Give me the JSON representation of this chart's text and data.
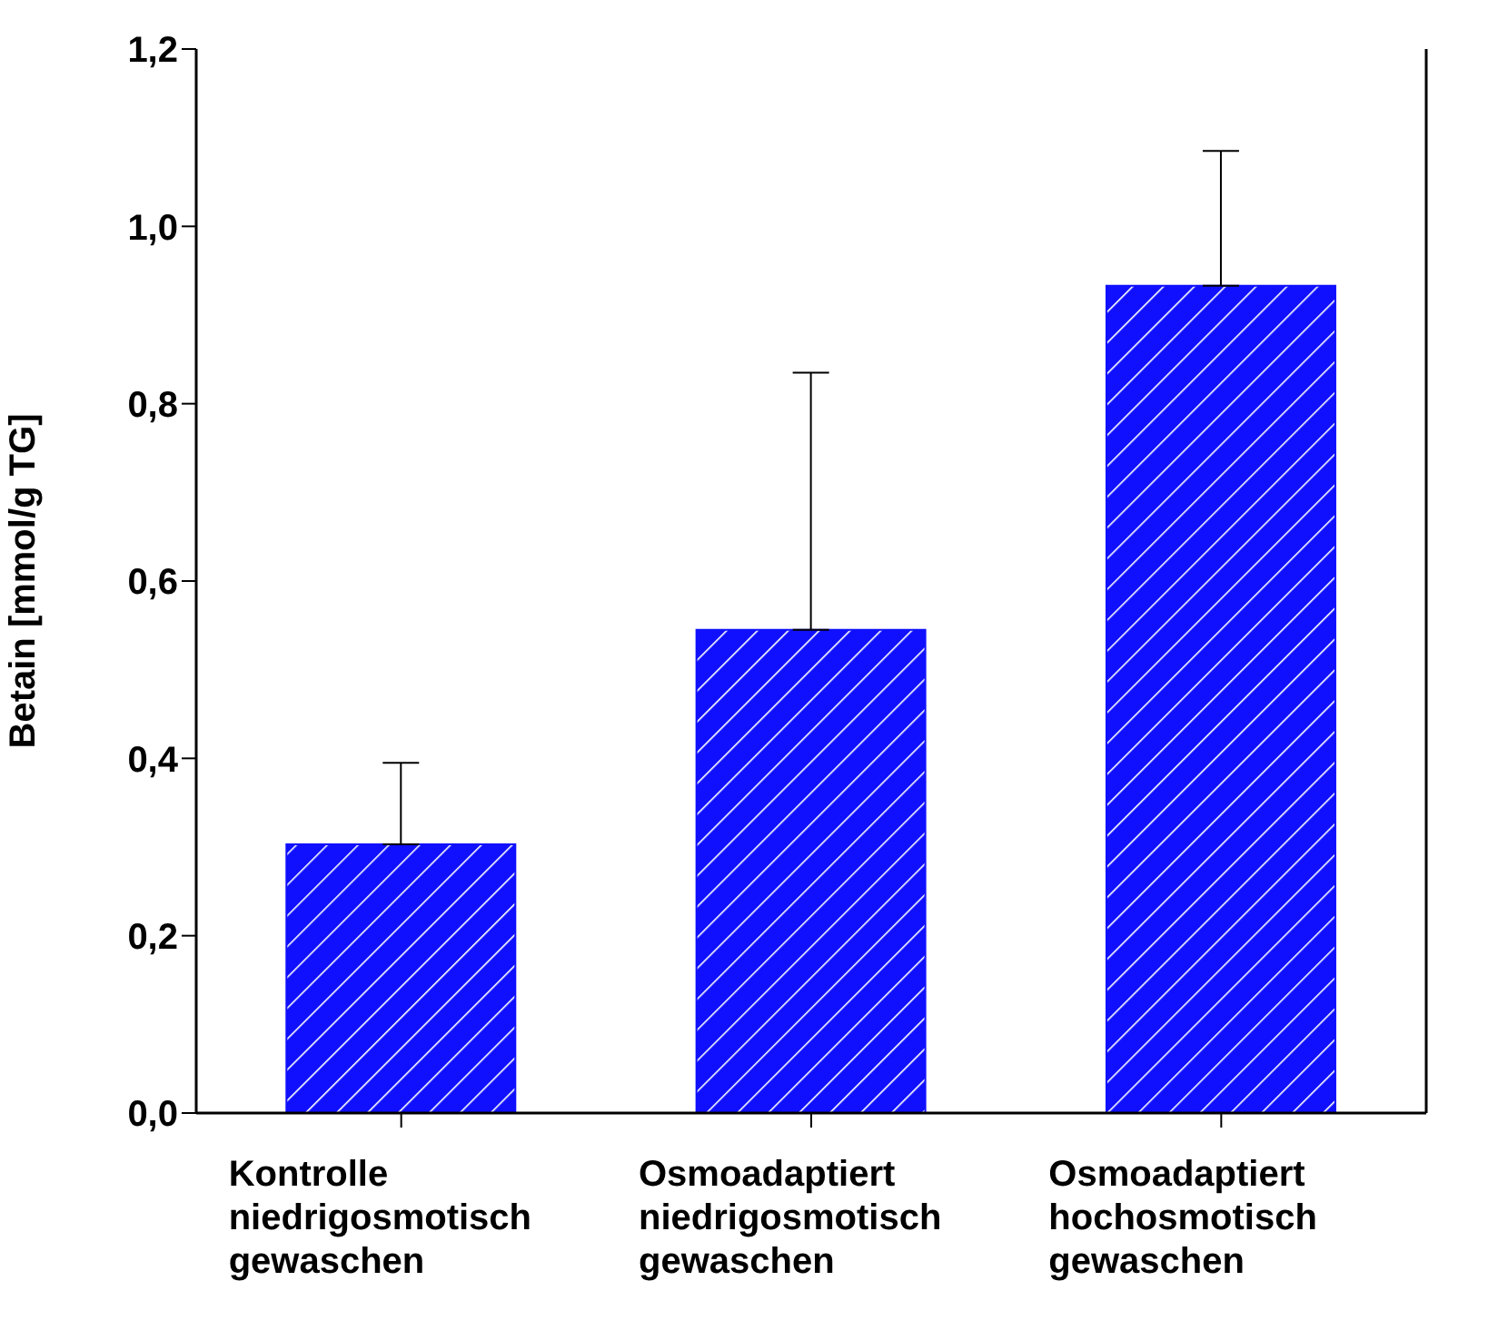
{
  "chart_data": {
    "type": "bar",
    "ylabel": "Betain [mmol/g TG]",
    "categories": [
      "Kontrolle\nniedrigosmotisch\ngewaschen",
      "Osmoadaptiert\nniedrigosmotisch\ngewaschen",
      "Osmoadaptiert\nhochosmotisch\ngewaschen"
    ],
    "values": [
      0.303,
      0.545,
      0.933
    ],
    "errors": [
      [
        0.303,
        0.395
      ],
      [
        0.545,
        0.835
      ],
      [
        0.933,
        1.085
      ]
    ],
    "color": "#1010ff",
    "ylim": [
      0,
      1.2
    ],
    "yticks": [
      {
        "value": 0,
        "label": "0,0"
      },
      {
        "value": 0.2,
        "label": "0,2"
      },
      {
        "value": 0.4,
        "label": "0,4"
      },
      {
        "value": 0.6,
        "label": "0,6"
      },
      {
        "value": 0.8,
        "label": "0,8"
      },
      {
        "value": 1,
        "label": "1,0"
      },
      {
        "value": 1.2,
        "label": "1,2"
      }
    ],
    "grid": false
  }
}
